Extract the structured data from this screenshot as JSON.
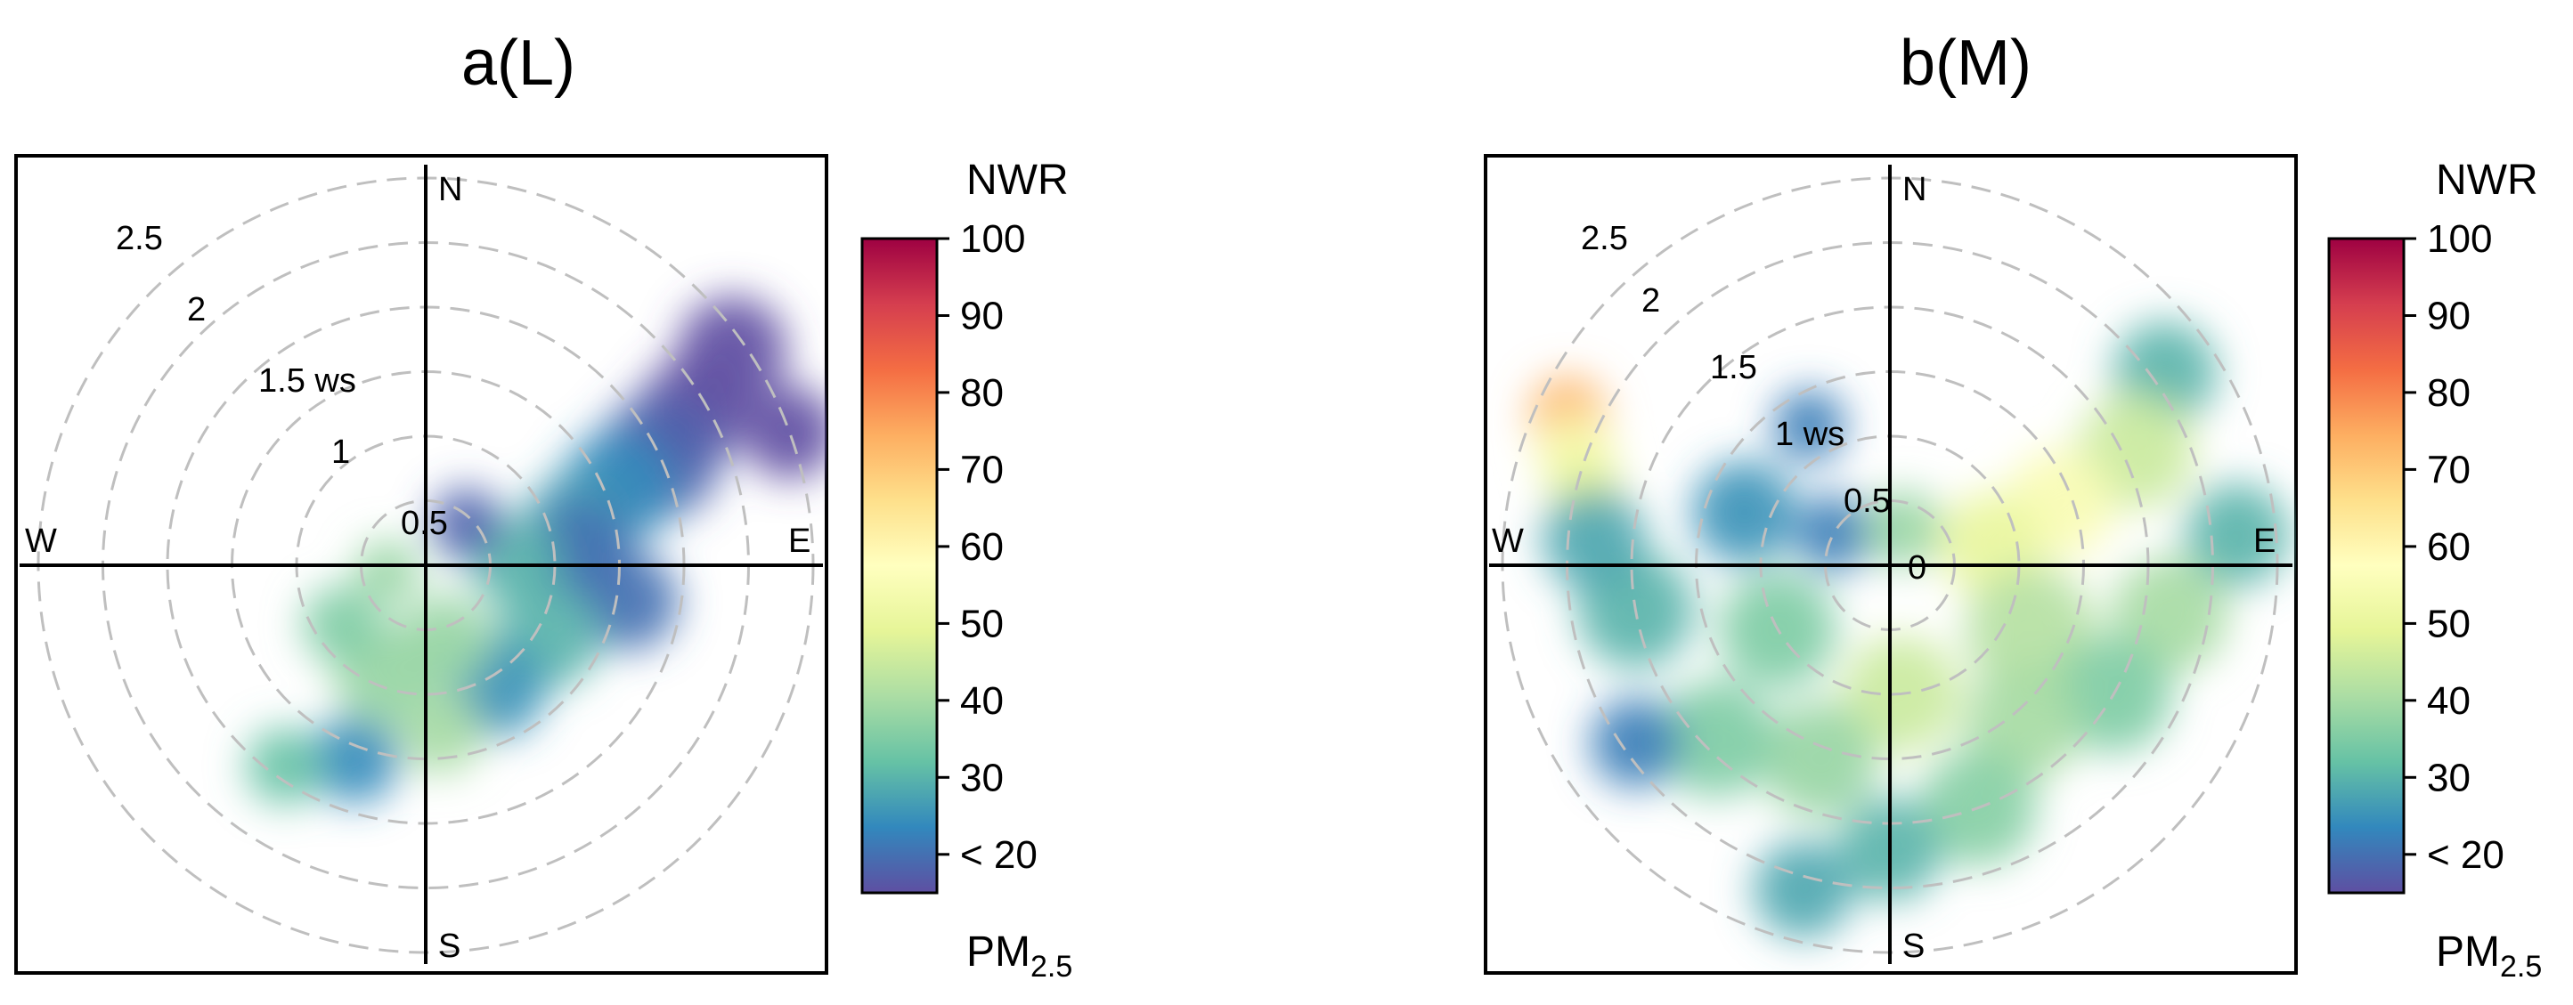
{
  "chart_data": [
    {
      "type": "polar_plot",
      "title": "a(L)",
      "colorbar": {
        "title": "NWR",
        "subtitle_main": "PM",
        "subtitle_sub": "2.5",
        "range": [
          15,
          100
        ],
        "ticks": [
          {
            "value": 100,
            "label": "100"
          },
          {
            "value": 90,
            "label": "90"
          },
          {
            "value": 80,
            "label": "80"
          },
          {
            "value": 70,
            "label": "70"
          },
          {
            "value": 60,
            "label": "60"
          },
          {
            "value": 50,
            "label": "50"
          },
          {
            "value": 40,
            "label": "40"
          },
          {
            "value": 30,
            "label": "30"
          },
          {
            "value": 20,
            "label": "< 20"
          }
        ]
      },
      "directions": {
        "north": "N",
        "south": "S",
        "east": "E",
        "west": "W"
      },
      "radial_axis": {
        "max": 3,
        "rings": [
          0.5,
          1,
          1.5,
          2,
          2.5,
          3
        ],
        "labels": [
          {
            "r": 0.5,
            "text": "0.5"
          },
          {
            "r": 1,
            "text": "1"
          },
          {
            "r": 1.5,
            "text": "1.5 ws"
          },
          {
            "r": 2,
            "text": "2"
          },
          {
            "r": 2.5,
            "text": "2.5"
          }
        ]
      },
      "blobs": [
        {
          "dir": 55,
          "ws": 2.9,
          "value": 15,
          "size": 0.42
        },
        {
          "dir": 70,
          "ws": 3.0,
          "value": 15,
          "size": 0.36
        },
        {
          "dir": 60,
          "ws": 2.4,
          "value": 15,
          "size": 0.42
        },
        {
          "dir": 65,
          "ws": 2.0,
          "value": 18,
          "size": 0.48
        },
        {
          "dir": 68,
          "ws": 1.6,
          "value": 24,
          "size": 0.44
        },
        {
          "dir": 75,
          "ws": 1.2,
          "value": 27,
          "size": 0.4
        },
        {
          "dir": 85,
          "ws": 1.2,
          "value": 20,
          "size": 0.4
        },
        {
          "dir": 88,
          "ws": 0.7,
          "value": 30,
          "size": 0.35
        },
        {
          "dir": 45,
          "ws": 0.45,
          "value": 18,
          "size": 0.28
        },
        {
          "dir": 100,
          "ws": 1.6,
          "value": 20,
          "size": 0.38
        },
        {
          "dir": 120,
          "ws": 1.1,
          "value": 30,
          "size": 0.4
        },
        {
          "dir": 150,
          "ws": 1.1,
          "value": 25,
          "size": 0.38
        },
        {
          "dir": 165,
          "ws": 0.6,
          "value": 38,
          "size": 0.35
        },
        {
          "dir": 175,
          "ws": 1.3,
          "value": 40,
          "size": 0.32
        },
        {
          "dir": 200,
          "ws": 1.6,
          "value": 24,
          "size": 0.34
        },
        {
          "dir": 200,
          "ws": 0.9,
          "value": 38,
          "size": 0.4
        },
        {
          "dir": 215,
          "ws": 1.9,
          "value": 32,
          "size": 0.3
        },
        {
          "dir": 235,
          "ws": 0.8,
          "value": 35,
          "size": 0.3
        },
        {
          "dir": 260,
          "ws": 0.3,
          "value": 38,
          "size": 0.25
        }
      ]
    },
    {
      "type": "polar_plot",
      "title": "b(M)",
      "colorbar": {
        "title": "NWR",
        "subtitle_main": "PM",
        "subtitle_sub": "2.5",
        "range": [
          15,
          100
        ],
        "ticks": [
          {
            "value": 100,
            "label": "100"
          },
          {
            "value": 90,
            "label": "90"
          },
          {
            "value": 80,
            "label": "80"
          },
          {
            "value": 70,
            "label": "70"
          },
          {
            "value": 60,
            "label": "60"
          },
          {
            "value": 50,
            "label": "50"
          },
          {
            "value": 40,
            "label": "40"
          },
          {
            "value": 30,
            "label": "30"
          },
          {
            "value": 20,
            "label": "< 20"
          }
        ]
      },
      "directions": {
        "north": "N",
        "south": "S",
        "east": "E",
        "west": "W"
      },
      "radial_axis": {
        "max": 3,
        "rings": [
          0.5,
          1,
          1.5,
          2,
          2.5,
          3
        ],
        "labels": [
          {
            "r": 0,
            "text": "0"
          },
          {
            "r": 0.5,
            "text": "0.5"
          },
          {
            "r": 1,
            "text": "1 ws"
          },
          {
            "r": 1.5,
            "text": "1.5"
          },
          {
            "r": 2,
            "text": "2"
          },
          {
            "r": 2.5,
            "text": "2.5"
          }
        ]
      },
      "blobs": [
        {
          "dir": 295,
          "ws": 2.75,
          "value": 74,
          "size": 0.3
        },
        {
          "dir": 290,
          "ws": 2.6,
          "value": 55,
          "size": 0.3
        },
        {
          "dir": 285,
          "ws": 2.45,
          "value": 50,
          "size": 0.28
        },
        {
          "dir": 330,
          "ws": 1.25,
          "value": 22,
          "size": 0.28
        },
        {
          "dir": 55,
          "ws": 2.6,
          "value": 30,
          "size": 0.4
        },
        {
          "dir": 65,
          "ws": 2.1,
          "value": 45,
          "size": 0.45
        },
        {
          "dir": 70,
          "ws": 1.4,
          "value": 55,
          "size": 0.42
        },
        {
          "dir": 78,
          "ws": 0.8,
          "value": 50,
          "size": 0.4
        },
        {
          "dir": 85,
          "ws": 2.7,
          "value": 30,
          "size": 0.4
        },
        {
          "dir": 100,
          "ws": 2.2,
          "value": 40,
          "size": 0.45
        },
        {
          "dir": 115,
          "ws": 1.2,
          "value": 42,
          "size": 0.5
        },
        {
          "dir": 120,
          "ws": 2.0,
          "value": 35,
          "size": 0.45
        },
        {
          "dir": 140,
          "ws": 1.6,
          "value": 40,
          "size": 0.45
        },
        {
          "dir": 160,
          "ws": 2.0,
          "value": 36,
          "size": 0.45
        },
        {
          "dir": 175,
          "ws": 1.0,
          "value": 45,
          "size": 0.45
        },
        {
          "dir": 180,
          "ws": 2.2,
          "value": 30,
          "size": 0.4
        },
        {
          "dir": 195,
          "ws": 2.6,
          "value": 28,
          "size": 0.38
        },
        {
          "dir": 200,
          "ws": 1.6,
          "value": 38,
          "size": 0.45
        },
        {
          "dir": 225,
          "ws": 1.9,
          "value": 35,
          "size": 0.45
        },
        {
          "dir": 235,
          "ws": 2.4,
          "value": 22,
          "size": 0.35
        },
        {
          "dir": 240,
          "ws": 1.0,
          "value": 35,
          "size": 0.45
        },
        {
          "dir": 260,
          "ws": 2.0,
          "value": 30,
          "size": 0.45
        },
        {
          "dir": 275,
          "ws": 2.3,
          "value": 28,
          "size": 0.4
        },
        {
          "dir": 290,
          "ws": 1.2,
          "value": 25,
          "size": 0.4
        },
        {
          "dir": 300,
          "ws": 0.5,
          "value": 22,
          "size": 0.3
        },
        {
          "dir": 20,
          "ws": 0.3,
          "value": 38,
          "size": 0.3
        }
      ]
    }
  ],
  "colors": {
    "colormap": [
      "#5e4fa2",
      "#3288bd",
      "#66c2a5",
      "#abdda4",
      "#e6f598",
      "#ffffbf",
      "#fee08b",
      "#fdae61",
      "#f46d43",
      "#d53e4f",
      "#9e0142"
    ],
    "ring": "#bfbfbf",
    "axis": "#000000"
  }
}
